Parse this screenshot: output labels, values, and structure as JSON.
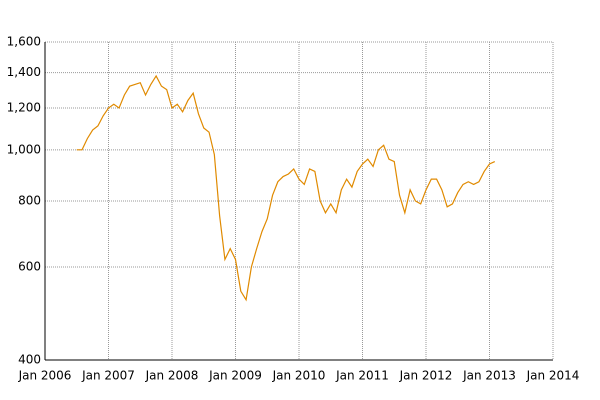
{
  "chart_data": {
    "type": "line",
    "y_scale": "log",
    "grid": true,
    "color": "#e08a00",
    "x": [
      "2006-07",
      "2006-08",
      "2006-09",
      "2006-10",
      "2006-11",
      "2006-12",
      "2007-01",
      "2007-02",
      "2007-03",
      "2007-04",
      "2007-05",
      "2007-06",
      "2007-07",
      "2007-08",
      "2007-09",
      "2007-10",
      "2007-11",
      "2007-12",
      "2008-01",
      "2008-02",
      "2008-03",
      "2008-04",
      "2008-05",
      "2008-06",
      "2008-07",
      "2008-08",
      "2008-09",
      "2008-10",
      "2008-11",
      "2008-12",
      "2009-01",
      "2009-02",
      "2009-03",
      "2009-04",
      "2009-05",
      "2009-06",
      "2009-07",
      "2009-08",
      "2009-09",
      "2009-10",
      "2009-11",
      "2009-12",
      "2010-01",
      "2010-02",
      "2010-03",
      "2010-04",
      "2010-05",
      "2010-06",
      "2010-07",
      "2010-08",
      "2010-09",
      "2010-10",
      "2010-11",
      "2010-12",
      "2011-01",
      "2011-02",
      "2011-03",
      "2011-04",
      "2011-05",
      "2011-06",
      "2011-07",
      "2011-08",
      "2011-09",
      "2011-10",
      "2011-11",
      "2011-12",
      "2012-01",
      "2012-02",
      "2012-03",
      "2012-04",
      "2012-05",
      "2012-06",
      "2012-07",
      "2012-08",
      "2012-09",
      "2012-10",
      "2012-11",
      "2012-12",
      "2013-01",
      "2013-02"
    ],
    "values": [
      1000,
      1000,
      1050,
      1090,
      1110,
      1160,
      1200,
      1220,
      1200,
      1270,
      1320,
      1330,
      1340,
      1270,
      1330,
      1380,
      1320,
      1300,
      1200,
      1220,
      1180,
      1240,
      1280,
      1170,
      1100,
      1080,
      980,
      750,
      620,
      650,
      620,
      540,
      520,
      600,
      650,
      700,
      740,
      820,
      870,
      890,
      900,
      920,
      880,
      860,
      920,
      910,
      800,
      760,
      790,
      760,
      840,
      880,
      850,
      910,
      940,
      960,
      930,
      1000,
      1020,
      960,
      950,
      820,
      760,
      840,
      800,
      790,
      840,
      880,
      880,
      840,
      780,
      790,
      830,
      860,
      870,
      860,
      870,
      910,
      940,
      950
    ],
    "xlim": [
      "2006-01",
      "2014-01"
    ],
    "xticks": [
      {
        "value": "2006-01",
        "label": "Jan 2006"
      },
      {
        "value": "2007-01",
        "label": "Jan 2007"
      },
      {
        "value": "2008-01",
        "label": "Jan 2008"
      },
      {
        "value": "2009-01",
        "label": "Jan 2009"
      },
      {
        "value": "2010-01",
        "label": "Jan 2010"
      },
      {
        "value": "2011-01",
        "label": "Jan 2011"
      },
      {
        "value": "2012-01",
        "label": "Jan 2012"
      },
      {
        "value": "2013-01",
        "label": "Jan 2013"
      },
      {
        "value": "2014-01",
        "label": "Jan 2014"
      }
    ],
    "ylim": [
      400,
      1600
    ],
    "yticks": [
      400,
      600,
      800,
      {
        "value": 1000,
        "label": "1,000"
      },
      {
        "value": 1200,
        "label": "1,200"
      },
      {
        "value": 1400,
        "label": "1,400"
      },
      {
        "value": 1600,
        "label": "1,600"
      }
    ]
  }
}
